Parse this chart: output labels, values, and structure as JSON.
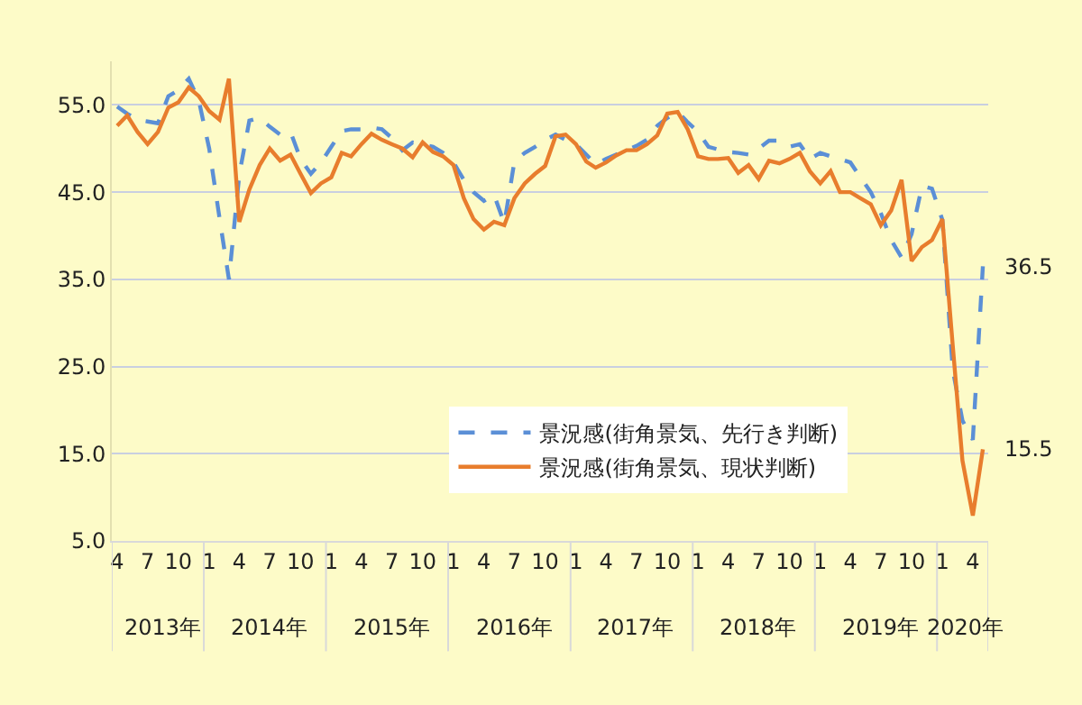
{
  "chart_data": {
    "type": "line",
    "x": [
      "2013-04",
      "2013-05",
      "2013-06",
      "2013-07",
      "2013-08",
      "2013-09",
      "2013-10",
      "2013-11",
      "2013-12",
      "2014-01",
      "2014-02",
      "2014-03",
      "2014-04",
      "2014-05",
      "2014-06",
      "2014-07",
      "2014-08",
      "2014-09",
      "2014-10",
      "2014-11",
      "2014-12",
      "2015-01",
      "2015-02",
      "2015-03",
      "2015-04",
      "2015-05",
      "2015-06",
      "2015-07",
      "2015-08",
      "2015-09",
      "2015-10",
      "2015-11",
      "2015-12",
      "2016-01",
      "2016-02",
      "2016-03",
      "2016-04",
      "2016-05",
      "2016-06",
      "2016-07",
      "2016-08",
      "2016-09",
      "2016-10",
      "2016-11",
      "2016-12",
      "2017-01",
      "2017-02",
      "2017-03",
      "2017-04",
      "2017-05",
      "2017-06",
      "2017-07",
      "2017-08",
      "2017-09",
      "2017-10",
      "2017-11",
      "2017-12",
      "2018-01",
      "2018-02",
      "2018-03",
      "2018-04",
      "2018-05",
      "2018-06",
      "2018-07",
      "2018-08",
      "2018-09",
      "2018-10",
      "2018-11",
      "2018-12",
      "2019-01",
      "2019-02",
      "2019-03",
      "2019-04",
      "2019-05",
      "2019-06",
      "2019-07",
      "2019-08",
      "2019-09",
      "2019-10",
      "2019-11",
      "2019-12",
      "2020-01",
      "2020-02",
      "2020-03",
      "2020-04",
      "2020-05"
    ],
    "series": [
      {
        "name": "景況感(街角景気、先行き判断)",
        "color": "#5b8fd6",
        "line_style": "dashed",
        "values": [
          54.8,
          54.0,
          53.3,
          53.1,
          52.9,
          56.0,
          56.7,
          58.0,
          55.5,
          50.0,
          42.0,
          35.0,
          47.0,
          53.2,
          53.5,
          52.5,
          51.6,
          51.9,
          48.8,
          47.1,
          48.4,
          50.2,
          52.0,
          52.2,
          52.2,
          52.4,
          52.2,
          51.2,
          49.8,
          50.7,
          50.5,
          50.2,
          49.5,
          48.4,
          46.4,
          45.0,
          44.0,
          44.7,
          41.4,
          48.5,
          49.5,
          50.2,
          51.0,
          51.6,
          51.0,
          50.5,
          49.3,
          48.2,
          48.8,
          49.3,
          49.8,
          50.3,
          51.0,
          52.6,
          53.5,
          54.2,
          53.0,
          51.9,
          50.2,
          49.9,
          49.6,
          49.5,
          49.3,
          50.0,
          50.9,
          50.9,
          50.2,
          50.5,
          48.8,
          49.5,
          49.1,
          48.8,
          48.4,
          46.7,
          45.0,
          42.6,
          39.5,
          37.5,
          40.2,
          45.7,
          45.4,
          41.8,
          24.6,
          18.8,
          16.6,
          36.5
        ]
      },
      {
        "name": "景況感(街角景気、現状判断)",
        "color": "#e87d2d",
        "line_style": "solid",
        "values": [
          52.6,
          53.8,
          51.9,
          50.5,
          51.9,
          54.7,
          55.3,
          57.0,
          56.0,
          54.3,
          53.3,
          58.0,
          41.6,
          45.3,
          48.1,
          50.0,
          48.6,
          49.3,
          47.1,
          44.9,
          46.0,
          46.7,
          49.5,
          49.1,
          50.5,
          51.7,
          51.0,
          50.5,
          50.0,
          49.0,
          50.7,
          49.6,
          49.1,
          48.1,
          44.3,
          41.9,
          40.7,
          41.6,
          41.2,
          44.3,
          46.0,
          47.1,
          48.0,
          51.4,
          51.6,
          50.5,
          48.5,
          47.8,
          48.4,
          49.2,
          49.8,
          49.8,
          50.5,
          51.5,
          54.0,
          54.2,
          52.2,
          49.1,
          48.8,
          48.8,
          48.9,
          47.2,
          48.1,
          46.5,
          48.6,
          48.3,
          48.8,
          49.5,
          47.4,
          46.0,
          47.4,
          45.0,
          45.0,
          44.3,
          43.6,
          41.2,
          42.9,
          46.4,
          37.1,
          38.7,
          39.5,
          41.9,
          27.4,
          14.2,
          7.9,
          15.5
        ]
      }
    ],
    "ylim": [
      5,
      60
    ],
    "yticks": [
      {
        "value": 5,
        "label": "5.0"
      },
      {
        "value": 15,
        "label": "15.0"
      },
      {
        "value": 25,
        "label": "25.0"
      },
      {
        "value": 35,
        "label": "35.0"
      },
      {
        "value": 45,
        "label": "45.0"
      },
      {
        "value": 55,
        "label": "55.0"
      }
    ],
    "xlim": [
      "2013-03-16",
      "2020-05-17"
    ],
    "xticks": [
      {
        "value": "2013-04",
        "label": "4"
      },
      {
        "value": "2013-07",
        "label": "7"
      },
      {
        "value": "2013-10",
        "label": "10"
      },
      {
        "value": "2014-01",
        "label": "1"
      },
      {
        "value": "2014-04",
        "label": "4"
      },
      {
        "value": "2014-07",
        "label": "7"
      },
      {
        "value": "2014-10",
        "label": "10"
      },
      {
        "value": "2015-01",
        "label": "1"
      },
      {
        "value": "2015-04",
        "label": "4"
      },
      {
        "value": "2015-07",
        "label": "7"
      },
      {
        "value": "2015-10",
        "label": "10"
      },
      {
        "value": "2016-01",
        "label": "1"
      },
      {
        "value": "2016-04",
        "label": "4"
      },
      {
        "value": "2016-07",
        "label": "7"
      },
      {
        "value": "2016-10",
        "label": "10"
      },
      {
        "value": "2017-01",
        "label": "1"
      },
      {
        "value": "2017-04",
        "label": "4"
      },
      {
        "value": "2017-07",
        "label": "7"
      },
      {
        "value": "2017-10",
        "label": "10"
      },
      {
        "value": "2018-01",
        "label": "1"
      },
      {
        "value": "2018-04",
        "label": "4"
      },
      {
        "value": "2018-07",
        "label": "7"
      },
      {
        "value": "2018-10",
        "label": "10"
      },
      {
        "value": "2019-01",
        "label": "1"
      },
      {
        "value": "2019-04",
        "label": "4"
      },
      {
        "value": "2019-07",
        "label": "7"
      },
      {
        "value": "2019-10",
        "label": "10"
      },
      {
        "value": "2020-01",
        "label": "1"
      },
      {
        "value": "2020-04",
        "label": "4"
      }
    ],
    "x2lim": [
      "2013-03-16",
      "2020-05-17"
    ],
    "x2ticks": [
      {
        "value": "2013-08-15",
        "label": "2013年"
      },
      {
        "value": "2014-07-01",
        "label": "2014年"
      },
      {
        "value": "2015-07-01",
        "label": "2015年"
      },
      {
        "value": "2016-07-01",
        "label": "2016年"
      },
      {
        "value": "2017-07-01",
        "label": "2017年"
      },
      {
        "value": "2018-07-01",
        "label": "2018年"
      },
      {
        "value": "2019-07-01",
        "label": "2019年"
      },
      {
        "value": "2020-03-10",
        "label": "2020年"
      }
    ],
    "annotations": [
      {
        "text": "36.5",
        "x": "2020-05",
        "y": 36.5
      },
      {
        "text": "15.5",
        "x": "2020-05",
        "y": 15.5
      }
    ],
    "grid": "y",
    "legend": "bottom right",
    "marker": "none"
  }
}
